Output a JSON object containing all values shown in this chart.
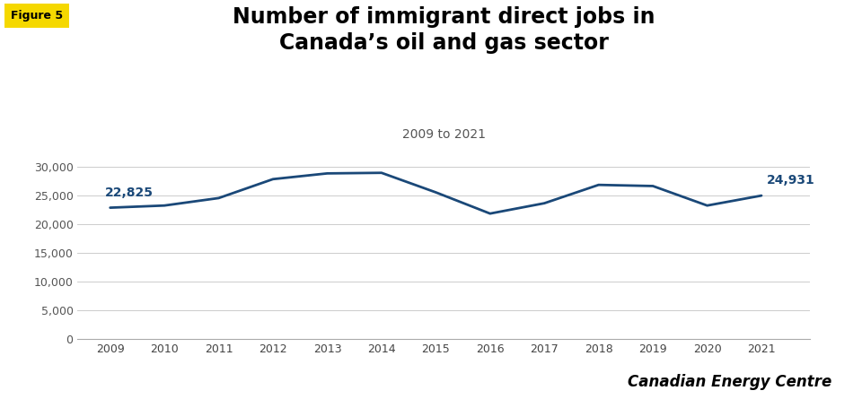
{
  "title_line1": "Number of immigrant direct jobs in",
  "title_line2": "Canada’s oil and gas sector",
  "subtitle": "2009 to 2021",
  "figure_label": "Figure 5",
  "years": [
    2009,
    2010,
    2011,
    2012,
    2013,
    2014,
    2015,
    2016,
    2017,
    2018,
    2019,
    2020,
    2021
  ],
  "values": [
    22825,
    23200,
    24500,
    27800,
    28800,
    28900,
    25500,
    21800,
    23600,
    26800,
    26600,
    23200,
    24931
  ],
  "line_color": "#1a4878",
  "annotation_first": "22,825",
  "annotation_last": "24,931",
  "annotation_color": "#1a4878",
  "ylim": [
    0,
    32000
  ],
  "yticks": [
    0,
    5000,
    10000,
    15000,
    20000,
    25000,
    30000
  ],
  "background_color": "#ffffff",
  "figure_label_bg": "#f5d800",
  "figure_label_color": "#000000",
  "watermark": "Canadian Energy Centre",
  "title_fontsize": 17,
  "subtitle_fontsize": 10,
  "tick_fontsize": 9,
  "annotation_fontsize": 10,
  "line_width": 2.0
}
